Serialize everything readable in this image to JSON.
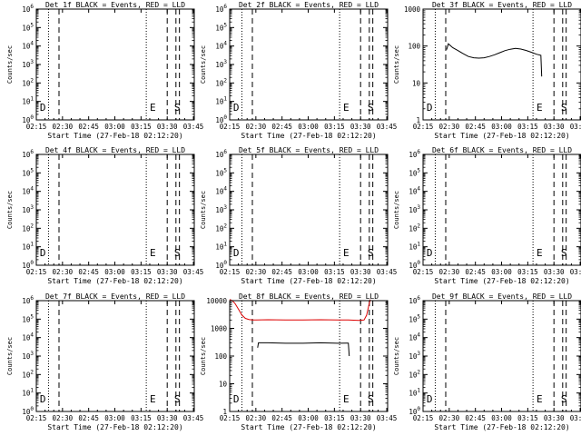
{
  "figure": {
    "xtick_labels": [
      "02:15",
      "02:30",
      "02:45",
      "03:00",
      "03:15",
      "03:30",
      "03:45"
    ],
    "xlabel": "Start Time (27-Feb-18 02:12:20)",
    "ylabel": "Counts/sec",
    "colors": {
      "events": "#000000",
      "lld": "#dd0000",
      "axes": "#000000"
    }
  },
  "chart_data": [
    {
      "type": "line",
      "title": "Det 1f BLACK = Events, RED = LLD",
      "xlim": [
        8.0,
        98.5
      ],
      "ylim": [
        1,
        1000000
      ],
      "yscale": "log",
      "ytick_labels": [
        "10^0",
        "10^1",
        "10^2",
        "10^3",
        "10^4",
        "10^5",
        "10^6"
      ],
      "ytick_values": [
        1,
        10,
        100,
        1000,
        10000,
        100000,
        1000000
      ],
      "dotted_lines": [
        15.0,
        71.0
      ],
      "dashed_lines": [
        21.0,
        83.0,
        88.0,
        90.0
      ],
      "markers": [
        {
          "text": "D",
          "x": 10.0
        },
        {
          "text": "E",
          "x": 73.0
        },
        {
          "text": "S",
          "x": 87.0
        }
      ],
      "series": []
    },
    {
      "type": "line",
      "title": "Det 2f BLACK = Events, RED = LLD",
      "xlim": [
        8.0,
        98.5
      ],
      "ylim": [
        1,
        1000000
      ],
      "yscale": "log",
      "ytick_labels": [
        "10^0",
        "10^1",
        "10^2",
        "10^3",
        "10^4",
        "10^5",
        "10^6"
      ],
      "ytick_values": [
        1,
        10,
        100,
        1000,
        10000,
        100000,
        1000000
      ],
      "dotted_lines": [
        15.0,
        71.0
      ],
      "dashed_lines": [
        21.0,
        83.0,
        88.0,
        90.0
      ],
      "markers": [
        {
          "text": "D",
          "x": 10.0
        },
        {
          "text": "E",
          "x": 73.0
        },
        {
          "text": "S",
          "x": 87.0
        }
      ],
      "series": []
    },
    {
      "type": "line",
      "title": "Det 3f BLACK = Events, RED = LLD",
      "xlim": [
        8.0,
        98.5
      ],
      "ylim": [
        1,
        1000
      ],
      "yscale": "log",
      "ytick_labels": [
        "1",
        "10",
        "100",
        "1000"
      ],
      "ytick_values": [
        1,
        10,
        100,
        1000
      ],
      "dotted_lines": [
        15.0,
        71.0
      ],
      "dashed_lines": [
        21.0,
        83.0,
        88.0,
        90.0
      ],
      "markers": [
        {
          "text": "D",
          "x": 10.0
        },
        {
          "text": "E",
          "x": 73.0
        },
        {
          "text": "S",
          "x": 87.0
        }
      ],
      "series": [
        {
          "color": "#000000",
          "x": [
            21.5,
            22.5,
            25,
            28,
            31,
            34,
            37,
            40,
            43,
            46,
            49,
            52,
            55,
            58,
            61,
            64,
            67,
            70,
            73,
            75.5,
            76
          ],
          "y": [
            80,
            115,
            90,
            75,
            62,
            52,
            48,
            47,
            48,
            52,
            58,
            66,
            75,
            82,
            86,
            83,
            76,
            68,
            60,
            56,
            15
          ]
        }
      ]
    },
    {
      "type": "line",
      "title": "Det 4f BLACK = Events, RED = LLD",
      "xlim": [
        8.0,
        98.5
      ],
      "ylim": [
        1,
        1000000
      ],
      "yscale": "log",
      "ytick_labels": [
        "10^0",
        "10^1",
        "10^2",
        "10^3",
        "10^4",
        "10^5",
        "10^6"
      ],
      "ytick_values": [
        1,
        10,
        100,
        1000,
        10000,
        100000,
        1000000
      ],
      "dotted_lines": [
        15.0,
        71.0
      ],
      "dashed_lines": [
        21.0,
        83.0,
        88.0,
        90.0
      ],
      "markers": [
        {
          "text": "D",
          "x": 10.0
        },
        {
          "text": "E",
          "x": 73.0
        },
        {
          "text": "S",
          "x": 87.0
        }
      ],
      "series": []
    },
    {
      "type": "line",
      "title": "Det 5f BLACK = Events, RED = LLD",
      "xlim": [
        8.0,
        98.5
      ],
      "ylim": [
        1,
        1000000
      ],
      "yscale": "log",
      "ytick_labels": [
        "10^0",
        "10^1",
        "10^2",
        "10^3",
        "10^4",
        "10^5",
        "10^6"
      ],
      "ytick_values": [
        1,
        10,
        100,
        1000,
        10000,
        100000,
        1000000
      ],
      "dotted_lines": [
        15.0,
        71.0
      ],
      "dashed_lines": [
        21.0,
        83.0,
        88.0,
        90.0
      ],
      "markers": [
        {
          "text": "D",
          "x": 10.0
        },
        {
          "text": "E",
          "x": 73.0
        },
        {
          "text": "S",
          "x": 87.0
        }
      ],
      "series": []
    },
    {
      "type": "line",
      "title": "Det 6f BLACK = Events, RED = LLD",
      "xlim": [
        8.0,
        98.5
      ],
      "ylim": [
        1,
        1000000
      ],
      "yscale": "log",
      "ytick_labels": [
        "10^0",
        "10^1",
        "10^2",
        "10^3",
        "10^4",
        "10^5",
        "10^6"
      ],
      "ytick_values": [
        1,
        10,
        100,
        1000,
        10000,
        100000,
        1000000
      ],
      "dotted_lines": [
        15.0,
        71.0
      ],
      "dashed_lines": [
        21.0,
        83.0,
        88.0,
        90.0
      ],
      "markers": [
        {
          "text": "D",
          "x": 10.0
        },
        {
          "text": "E",
          "x": 73.0
        },
        {
          "text": "S",
          "x": 87.0
        }
      ],
      "series": []
    },
    {
      "type": "line",
      "title": "Det 7f BLACK = Events, RED = LLD",
      "xlim": [
        8.0,
        98.5
      ],
      "ylim": [
        1,
        1000000
      ],
      "yscale": "log",
      "ytick_labels": [
        "10^0",
        "10^1",
        "10^2",
        "10^3",
        "10^4",
        "10^5",
        "10^6"
      ],
      "ytick_values": [
        1,
        10,
        100,
        1000,
        10000,
        100000,
        1000000
      ],
      "dotted_lines": [
        15.0,
        71.0
      ],
      "dashed_lines": [
        21.0,
        83.0,
        88.0,
        90.0
      ],
      "markers": [
        {
          "text": "D",
          "x": 10.0
        },
        {
          "text": "E",
          "x": 73.0
        },
        {
          "text": "S",
          "x": 87.0
        }
      ],
      "series": []
    },
    {
      "type": "line",
      "title": "Det 8f BLACK = Events, RED = LLD",
      "xlim": [
        8.0,
        98.5
      ],
      "ylim": [
        1,
        10000
      ],
      "yscale": "log",
      "ytick_labels": [
        "1",
        "10",
        "100",
        "1000",
        "10000"
      ],
      "ytick_values": [
        1,
        10,
        100,
        1000,
        10000
      ],
      "dotted_lines": [
        15.0,
        71.0
      ],
      "dashed_lines": [
        21.0,
        83.0,
        88.0,
        90.0
      ],
      "markers": [
        {
          "text": "D",
          "x": 10.0
        },
        {
          "text": "E",
          "x": 73.0
        },
        {
          "text": "S",
          "x": 87.0
        }
      ],
      "series": [
        {
          "color": "#dd0000",
          "x": [
            8,
            9.5,
            11,
            13,
            15,
            17,
            19,
            21,
            23,
            30,
            40,
            50,
            60,
            70,
            76,
            82,
            85,
            86.5,
            87.5,
            88.5
          ],
          "y": [
            11000,
            10000,
            8000,
            5000,
            3000,
            2300,
            2100,
            2000,
            2000,
            2050,
            2000,
            2000,
            2050,
            2000,
            2000,
            1950,
            2000,
            3000,
            6000,
            11000
          ]
        },
        {
          "color": "#000000",
          "x": [
            24,
            24.5,
            30,
            40,
            50,
            60,
            70,
            76,
            76.5
          ],
          "y": [
            200,
            300,
            300,
            290,
            290,
            300,
            290,
            295,
            100
          ]
        }
      ]
    },
    {
      "type": "line",
      "title": "Det 9f BLACK = Events, RED = LLD",
      "xlim": [
        8.0,
        98.5
      ],
      "ylim": [
        1,
        1000000
      ],
      "yscale": "log",
      "ytick_labels": [
        "10^0",
        "10^1",
        "10^2",
        "10^3",
        "10^4",
        "10^5",
        "10^6"
      ],
      "ytick_values": [
        1,
        10,
        100,
        1000,
        10000,
        100000,
        1000000
      ],
      "dotted_lines": [
        15.0,
        71.0
      ],
      "dashed_lines": [
        21.0,
        83.0,
        88.0,
        90.0
      ],
      "markers": [
        {
          "text": "D",
          "x": 10.0
        },
        {
          "text": "E",
          "x": 73.0
        },
        {
          "text": "S",
          "x": 87.0
        }
      ],
      "series": []
    }
  ]
}
